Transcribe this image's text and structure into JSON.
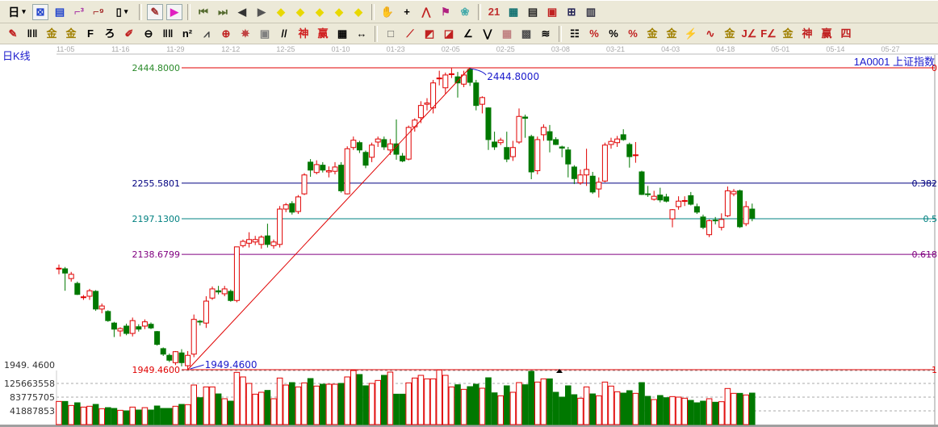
{
  "toolbar_row1": [
    {
      "name": "period-selector",
      "glyph": "日",
      "color": "#000",
      "dropdown": true,
      "text": true
    },
    {
      "name": "chart-layout-icon",
      "glyph": "⊠",
      "color": "#2244cc",
      "selected": true
    },
    {
      "name": "document-icon",
      "glyph": "▤",
      "color": "#2244cc"
    },
    {
      "name": "stepped-chart-3-icon",
      "glyph": "⌐³",
      "color": "#a020a0"
    },
    {
      "name": "stepped-chart-9-icon",
      "glyph": "⌐⁹",
      "color": "#a02020"
    },
    {
      "name": "candle-type-selector",
      "glyph": "▯",
      "color": "#000",
      "dropdown": true
    },
    {
      "name": "sep"
    },
    {
      "name": "draw-tool-icon",
      "glyph": "✎",
      "color": "#a03030",
      "selected": true
    },
    {
      "name": "flag-icon",
      "glyph": "▶",
      "color": "#e020c0",
      "selected": true
    },
    {
      "name": "sep"
    },
    {
      "name": "first-page-icon",
      "glyph": "⏮",
      "color": "#556b2f"
    },
    {
      "name": "last-page-icon",
      "glyph": "⏭",
      "color": "#556b2f"
    },
    {
      "name": "scroll-left-icon",
      "glyph": "◀",
      "color": "#333"
    },
    {
      "name": "scroll-right-icon",
      "glyph": "▶",
      "color": "#555"
    },
    {
      "name": "move-left-icon",
      "glyph": "◆",
      "color": "#e8d800"
    },
    {
      "name": "move-right-icon",
      "glyph": "◆",
      "color": "#e8d800"
    },
    {
      "name": "expand-icon",
      "glyph": "◆",
      "color": "#e8d800"
    },
    {
      "name": "shrink-icon",
      "glyph": "◆",
      "color": "#e8d800"
    },
    {
      "name": "zoom-fit-icon",
      "glyph": "◆",
      "color": "#e8d800"
    },
    {
      "name": "sep"
    },
    {
      "name": "hand-icon",
      "glyph": "✋",
      "color": "#333"
    },
    {
      "name": "crosshair-icon",
      "glyph": "+",
      "color": "#000"
    },
    {
      "name": "line-point-icon",
      "glyph": "⋀",
      "color": "#c02020"
    },
    {
      "name": "shirt-icon",
      "glyph": "⚑",
      "color": "#b02080"
    },
    {
      "name": "pattern-icon",
      "glyph": "❀",
      "color": "#4aa"
    },
    {
      "name": "sep"
    },
    {
      "name": "calendar-icon",
      "glyph": "21",
      "color": "#c03030"
    },
    {
      "name": "calculator-icon",
      "glyph": "▦",
      "color": "#107070"
    },
    {
      "name": "notes-icon",
      "glyph": "▤",
      "color": "#222"
    },
    {
      "name": "save-icon",
      "glyph": "▣",
      "color": "#c02020"
    },
    {
      "name": "network-icon",
      "glyph": "⊞",
      "color": "#225"
    },
    {
      "name": "computer-icon",
      "glyph": "▥",
      "color": "#334"
    }
  ],
  "toolbar_row2": [
    {
      "name": "pencil-icon",
      "glyph": "✎",
      "color": "#c02020"
    },
    {
      "name": "parallel-lines-icon",
      "glyph": "‖‖",
      "color": "#000"
    },
    {
      "name": "gold-line-icon",
      "glyph": "金",
      "color": "#a08000"
    },
    {
      "name": "gold-line-2-icon",
      "glyph": "金",
      "color": "#a08000"
    },
    {
      "name": "f-line-icon",
      "glyph": "F",
      "color": "#000"
    },
    {
      "name": "spiral-icon",
      "glyph": "ろ",
      "color": "#000"
    },
    {
      "name": "ruler-pencil-icon",
      "glyph": "✐",
      "color": "#c02020"
    },
    {
      "name": "circle-ruler-icon",
      "glyph": "⊖",
      "color": "#000"
    },
    {
      "name": "grid-lines-icon",
      "glyph": "‖‖",
      "color": "#000"
    },
    {
      "name": "n-squared-icon",
      "glyph": "n²",
      "color": "#000"
    },
    {
      "name": "angle-icon",
      "glyph": "⩘",
      "color": "#444"
    },
    {
      "name": "target-icon",
      "glyph": "⊕",
      "color": "#c02020"
    },
    {
      "name": "star-target-icon",
      "glyph": "✵",
      "color": "#c04040"
    },
    {
      "name": "box-target-icon",
      "glyph": "▣",
      "color": "#808080"
    },
    {
      "name": "slash-lines-icon",
      "glyph": "//",
      "color": "#000"
    },
    {
      "name": "shen-icon",
      "glyph": "神",
      "color": "#d02020"
    },
    {
      "name": "ying-icon",
      "glyph": "赢",
      "color": "#d02020"
    },
    {
      "name": "numbered-grid-icon",
      "glyph": "▦",
      "color": "#000"
    },
    {
      "name": "width-icon",
      "glyph": "↔",
      "color": "#000"
    },
    {
      "name": "sep"
    },
    {
      "name": "rectangle-icon",
      "glyph": "□",
      "color": "#555"
    },
    {
      "name": "fan-icon",
      "glyph": "⟋",
      "color": "#c02020"
    },
    {
      "name": "fan-box-icon",
      "glyph": "◩",
      "color": "#c02020"
    },
    {
      "name": "fan-box-2-icon",
      "glyph": "◪",
      "color": "#c02020"
    },
    {
      "name": "angle-lines-icon",
      "glyph": "∠",
      "color": "#000"
    },
    {
      "name": "wave-icon",
      "glyph": "⋁",
      "color": "#000"
    },
    {
      "name": "grid-icon",
      "glyph": "▦",
      "color": "#c08080"
    },
    {
      "name": "grid-2-icon",
      "glyph": "▩",
      "color": "#505050"
    },
    {
      "name": "stripes-icon",
      "glyph": "≋",
      "color": "#000"
    },
    {
      "name": "sep"
    },
    {
      "name": "table-icon",
      "glyph": "☷",
      "color": "#000"
    },
    {
      "name": "percent-line-icon",
      "glyph": "%",
      "color": "#c02020"
    },
    {
      "name": "percent-icon",
      "glyph": "%",
      "color": "#000"
    },
    {
      "name": "percent-lines-icon",
      "glyph": "%",
      "color": "#c02020"
    },
    {
      "name": "gold-coin-icon",
      "glyph": "金",
      "color": "#a08000"
    },
    {
      "name": "gold-lines-icon",
      "glyph": "金",
      "color": "#a08000"
    },
    {
      "name": "rocket-icon",
      "glyph": "⚡",
      "color": "#c02020"
    },
    {
      "name": "sine-icon",
      "glyph": "∿",
      "color": "#c02020"
    },
    {
      "name": "gold-box-icon",
      "glyph": "金",
      "color": "#a08000"
    },
    {
      "name": "j-angle-icon",
      "glyph": "J∠",
      "color": "#c02020"
    },
    {
      "name": "f-angle-icon",
      "glyph": "F∠",
      "color": "#c02020"
    },
    {
      "name": "gold-angle-icon",
      "glyph": "金",
      "color": "#a08000"
    },
    {
      "name": "shen-angle-icon",
      "glyph": "神",
      "color": "#c02020"
    },
    {
      "name": "ying-angle-icon",
      "glyph": "赢",
      "color": "#c02020"
    },
    {
      "name": "si-angle-icon",
      "glyph": "四",
      "color": "#c02020"
    }
  ],
  "chart_header": {
    "period_label": "日K线",
    "stock_label": "1A0001  上证指数"
  },
  "date_axis": [
    "11-05",
    "11-16",
    "11-29",
    "12-12",
    "12-25",
    "01-10",
    "01-23",
    "02-05",
    "02-25",
    "03-08",
    "03-21",
    "04-03",
    "04-18",
    "05-01",
    "05-14",
    "05-27"
  ],
  "colors": {
    "up": "#e00000",
    "down": "#007800",
    "high_line": "#e00000",
    "level_0382": "#000080",
    "level_05": "#008080",
    "level_0618": "#800080",
    "low_line": "#e00000",
    "annotation": "#1a1acc"
  },
  "fib_levels": [
    {
      "price_label": "2444.8000",
      "ratio": "0",
      "price": 2444.8,
      "color": "#e00000",
      "label_color": "#2a8a2a"
    },
    {
      "price_label": "2255.5801",
      "ratio": "0.382",
      "price": 2255.5801,
      "color": "#000080",
      "label_color": "#000080"
    },
    {
      "price_label": "2197.1300",
      "ratio": "0.5",
      "price": 2197.13,
      "color": "#008080",
      "label_color": "#008080"
    },
    {
      "price_label": "2138.6799",
      "ratio": "0.618",
      "price": 2138.6799,
      "color": "#800080",
      "label_color": "#800080"
    },
    {
      "price_label": "1949.4600",
      "ratio": "1",
      "price": 1949.46,
      "color": "#e00000",
      "label_color": "#e00000"
    }
  ],
  "annotations": {
    "high": "2444.8000",
    "low": "1949.4600",
    "price_axis_low": "1949. 4600"
  },
  "volume_axis": [
    "125663558",
    "83775705",
    "41887853"
  ],
  "chart_data": {
    "type": "candlestick",
    "ylim": [
      1949.46,
      2444.8
    ],
    "volume_ticks": [
      41887853,
      83775705,
      125663558
    ],
    "ohlc": [
      [
        2115,
        2122,
        2106,
        2116
      ],
      [
        2115,
        2118,
        2079,
        2108
      ],
      [
        2099,
        2110,
        2094,
        2106
      ],
      [
        2091,
        2094,
        2072,
        2073
      ],
      [
        2068,
        2072,
        2064,
        2069
      ],
      [
        2070,
        2082,
        2064,
        2079
      ],
      [
        2078,
        2080,
        2046,
        2049
      ],
      [
        2049,
        2058,
        2042,
        2054
      ],
      [
        2045,
        2047,
        2028,
        2030
      ],
      [
        2026,
        2028,
        2003,
        2016
      ],
      [
        2013,
        2019,
        2004,
        2017
      ],
      [
        2021,
        2025,
        2006,
        2009
      ],
      [
        2009,
        2035,
        2004,
        2030
      ],
      [
        2020,
        2024,
        2012,
        2016
      ],
      [
        2021,
        2032,
        2016,
        2028
      ],
      [
        2024,
        2027,
        2016,
        2018
      ],
      [
        2012,
        2013,
        1989,
        1991
      ],
      [
        1984,
        1986,
        1972,
        1975
      ],
      [
        1973,
        1976,
        1962,
        1965
      ],
      [
        1961,
        1980,
        1957,
        1979
      ],
      [
        1977,
        1983,
        1955,
        1961
      ],
      [
        1956,
        1980,
        1949.46,
        1973
      ],
      [
        1975,
        2040,
        1970,
        2032
      ],
      [
        2029,
        2031,
        2022,
        2028
      ],
      [
        2026,
        2070,
        2018,
        2062
      ],
      [
        2067,
        2086,
        2064,
        2082
      ],
      [
        2079,
        2087,
        2073,
        2077
      ],
      [
        2074,
        2087,
        2070,
        2082
      ],
      [
        2078,
        2081,
        2061,
        2063
      ],
      [
        2063,
        2151,
        2060,
        2151
      ],
      [
        2153,
        2163,
        2150,
        2160
      ],
      [
        2157,
        2175,
        2150,
        2163
      ],
      [
        2159,
        2169,
        2154,
        2163
      ],
      [
        2155,
        2170,
        2148,
        2167
      ],
      [
        2169,
        2189,
        2150,
        2155
      ],
      [
        2153,
        2163,
        2148,
        2159
      ],
      [
        2155,
        2218,
        2150,
        2213
      ],
      [
        2213,
        2223,
        2208,
        2220
      ],
      [
        2222,
        2226,
        2204,
        2208
      ],
      [
        2209,
        2236,
        2205,
        2233
      ],
      [
        2238,
        2272,
        2236,
        2269
      ],
      [
        2290,
        2295,
        2266,
        2277
      ],
      [
        2273,
        2293,
        2270,
        2286
      ],
      [
        2285,
        2290,
        2273,
        2277
      ],
      [
        2274,
        2283,
        2265,
        2276
      ],
      [
        2275,
        2290,
        2270,
        2282
      ],
      [
        2285,
        2290,
        2240,
        2243
      ],
      [
        2238,
        2316,
        2237,
        2312
      ],
      [
        2314,
        2332,
        2310,
        2326
      ],
      [
        2322,
        2325,
        2305,
        2310
      ],
      [
        2306,
        2309,
        2280,
        2285
      ],
      [
        2298,
        2322,
        2290,
        2318
      ],
      [
        2323,
        2332,
        2315,
        2328
      ],
      [
        2327,
        2332,
        2310,
        2315
      ],
      [
        2310,
        2328,
        2302,
        2320
      ],
      [
        2320,
        2360,
        2294,
        2303
      ],
      [
        2300,
        2305,
        2290,
        2292
      ],
      [
        2295,
        2350,
        2293,
        2347
      ],
      [
        2348,
        2362,
        2340,
        2359
      ],
      [
        2363,
        2390,
        2354,
        2383
      ],
      [
        2385,
        2395,
        2375,
        2387
      ],
      [
        2379,
        2425,
        2370,
        2420
      ],
      [
        2427,
        2440,
        2416,
        2428
      ],
      [
        2412,
        2437,
        2402,
        2433
      ],
      [
        2434,
        2444,
        2428,
        2435
      ],
      [
        2430,
        2438,
        2396,
        2420
      ],
      [
        2418,
        2440,
        2413,
        2433
      ],
      [
        2442,
        2444.8,
        2415,
        2421
      ],
      [
        2420,
        2425,
        2375,
        2383
      ],
      [
        2385,
        2398,
        2370,
        2396
      ],
      [
        2379,
        2380,
        2310,
        2327
      ],
      [
        2323,
        2340,
        2310,
        2315
      ],
      [
        2322,
        2330,
        2318,
        2326
      ],
      [
        2314,
        2340,
        2290,
        2295
      ],
      [
        2299,
        2325,
        2292,
        2314
      ],
      [
        2323,
        2378,
        2320,
        2365
      ],
      [
        2364,
        2368,
        2330,
        2362
      ],
      [
        2332,
        2335,
        2262,
        2274
      ],
      [
        2276,
        2332,
        2270,
        2327
      ],
      [
        2335,
        2352,
        2325,
        2347
      ],
      [
        2340,
        2351,
        2306,
        2326
      ],
      [
        2327,
        2331,
        2318,
        2319
      ],
      [
        2315,
        2317,
        2298,
        2313
      ],
      [
        2310,
        2315,
        2265,
        2287
      ],
      [
        2282,
        2285,
        2254,
        2263
      ],
      [
        2256,
        2278,
        2253,
        2269
      ],
      [
        2269,
        2312,
        2251,
        2278
      ],
      [
        2267,
        2274,
        2238,
        2241
      ],
      [
        2246,
        2265,
        2232,
        2257
      ],
      [
        2259,
        2322,
        2257,
        2318
      ],
      [
        2319,
        2330,
        2312,
        2324
      ],
      [
        2322,
        2333,
        2315,
        2328
      ],
      [
        2335,
        2344,
        2325,
        2327
      ],
      [
        2319,
        2322,
        2281,
        2299
      ],
      [
        2301,
        2323,
        2289,
        2302
      ],
      [
        2274,
        2276,
        2236,
        2237
      ],
      [
        2238,
        2251,
        2233,
        2237
      ],
      [
        2229,
        2243,
        2227,
        2234
      ],
      [
        2236,
        2248,
        2224,
        2228
      ],
      [
        2233,
        2238,
        2224,
        2226
      ],
      [
        2197,
        2213,
        2183,
        2212
      ],
      [
        2217,
        2234,
        2212,
        2226
      ],
      [
        2226,
        2234,
        2218,
        2227
      ],
      [
        2235,
        2241,
        2219,
        2221
      ],
      [
        2217,
        2222,
        2205,
        2208
      ],
      [
        2200,
        2204,
        2180,
        2183
      ],
      [
        2171,
        2196,
        2167,
        2194
      ],
      [
        2195,
        2200,
        2188,
        2194
      ],
      [
        2183,
        2206,
        2178,
        2196
      ],
      [
        2202,
        2250,
        2200,
        2243
      ],
      [
        2238,
        2246,
        2234,
        2242
      ],
      [
        2243,
        2245,
        2182,
        2184
      ],
      [
        2189,
        2226,
        2185,
        2217
      ],
      [
        2213,
        2222,
        2193,
        2198
      ]
    ],
    "volume": [
      70600000.0,
      70600000.0,
      58300000.0,
      66500000.0,
      53400000.0,
      55900000.0,
      61600000.0,
      48500000.0,
      51700000.0,
      49300000.0,
      43500000.0,
      41900000.0,
      53400000.0,
      44400000.0,
      51700000.0,
      44400000.0,
      56700000.0,
      49300000.0,
      49300000.0,
      55900000.0,
      61600000.0,
      60800000.0,
      120700000.0,
      82100000.0,
      115000000.0,
      115000000.0,
      93600000.0,
      78900000.0,
      71500000.0,
      159400000.0,
      145400000.0,
      125700000.0,
      92800000.0,
      98600000.0,
      104300000.0,
      78900000.0,
      142100000.0,
      120700000.0,
      128100000.0,
      115000000.0,
      127300000.0,
      140500000.0,
      117500000.0,
      123200000.0,
      123200000.0,
      123200000.0,
      125700000.0,
      145400000.0,
      165100000.0,
      152800000.0,
      118300000.0,
      125700000.0,
      134700000.0,
      150300000.0,
      160200000.0,
      92800000.0,
      92800000.0,
      127300000.0,
      142100000.0,
      150300000.0,
      139600000.0,
      139600000.0,
      166700000.0,
      150300000.0,
      115000000.0,
      121600000.0,
      107600000.0,
      115800000.0,
      123200000.0,
      110900000.0,
      142900000.0,
      96900000.0,
      87900000.0,
      118300000.0,
      98600000.0,
      128100000.0,
      121600000.0,
      162600000.0,
      129800000.0,
      139600000.0,
      139600000.0,
      98600000.0,
      83800000.0,
      118300000.0,
      91200000.0,
      80500000.0,
      115000000.0,
      93600000.0,
      87900000.0,
      129800000.0,
      117500000.0,
      100200000.0,
      96100000.0,
      103500000.0,
      95300000.0,
      128100000.0,
      86200000.0,
      76400000.0,
      88700000.0,
      82100000.0,
      85400000.0,
      83800000.0,
      80500000.0,
      73900000.0,
      66500000.0,
      71500000.0,
      78900000.0,
      68200000.0,
      69800000.0,
      110100000.0,
      95300000.0,
      95300000.0,
      90400000.0,
      96100000.0
    ]
  }
}
